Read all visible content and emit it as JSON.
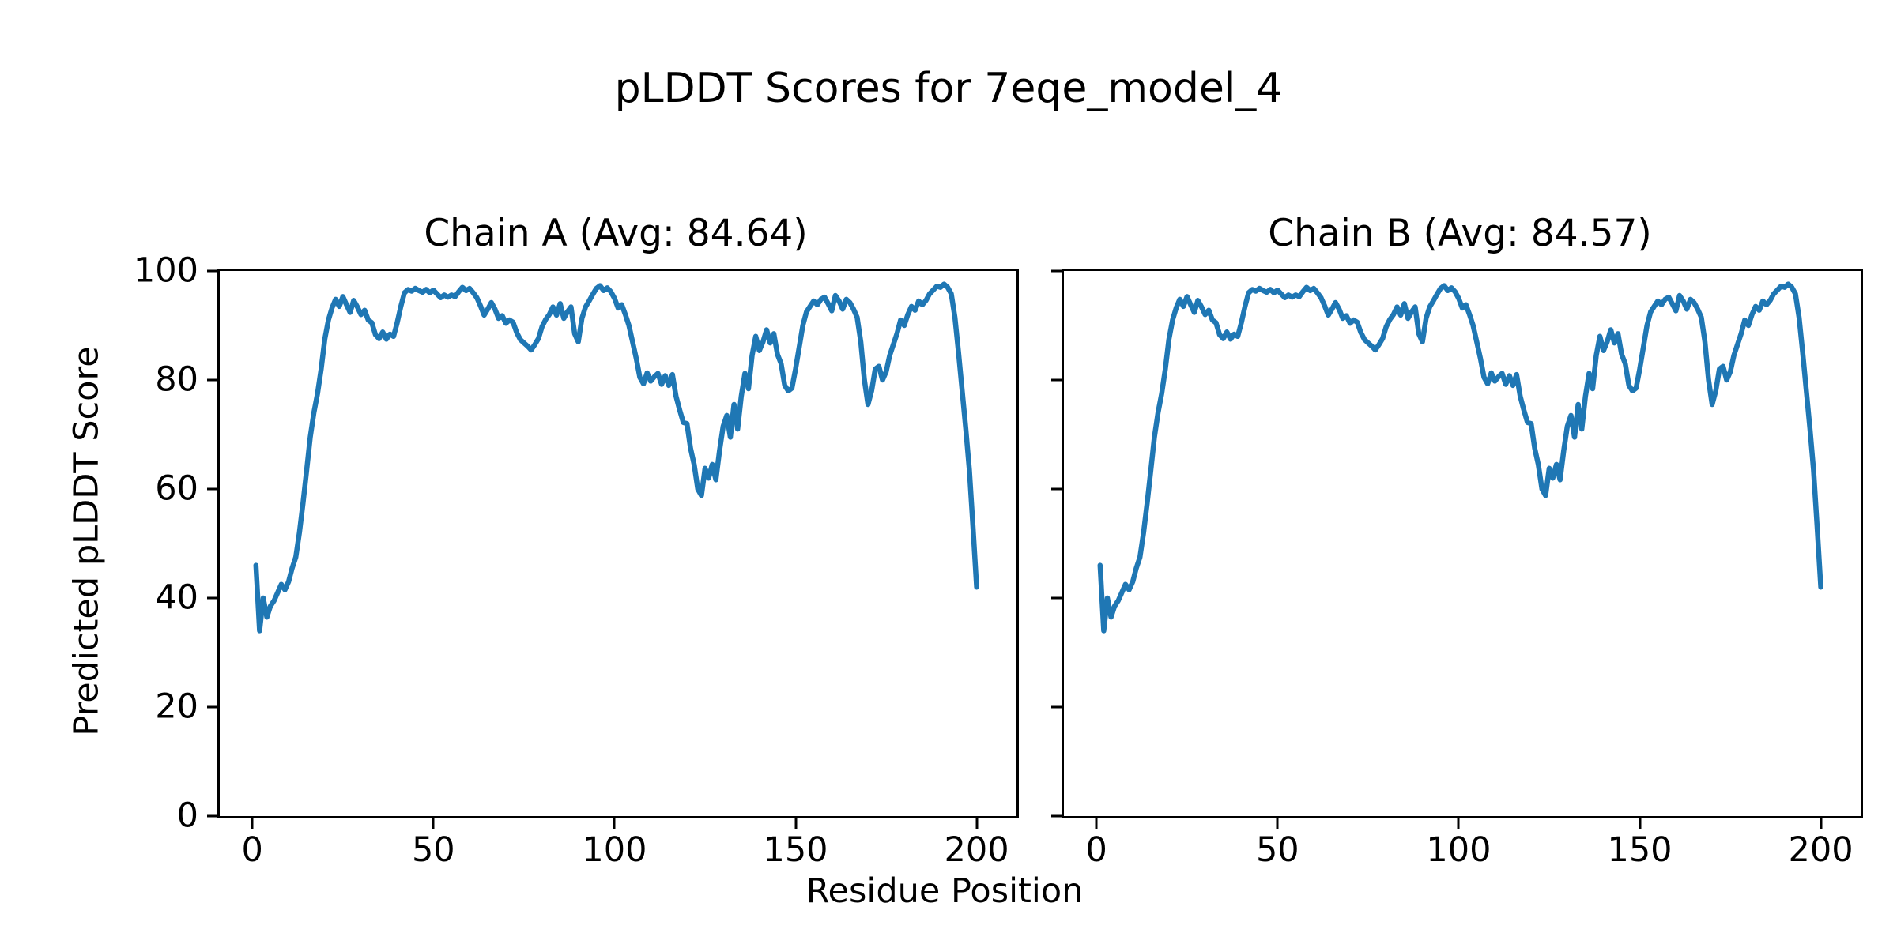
{
  "figure": {
    "title": "pLDDT Scores for 7eqe_model_4",
    "xlabel": "Residue Position",
    "ylabel": "Predicted pLDDT Score"
  },
  "chart_data": [
    {
      "type": "line",
      "title": "Chain A (Avg: 84.64)",
      "chain": "A",
      "average_plddt": 84.64,
      "line_color": "#1f77b4",
      "xlim": [
        -9,
        211
      ],
      "ylim": [
        0,
        100
      ],
      "xticks": [
        0,
        50,
        100,
        150,
        200
      ],
      "yticks": [
        0,
        20,
        40,
        60,
        80,
        100
      ],
      "y_tick_labels": true,
      "grid": false,
      "legend": "none",
      "x_start": 1,
      "values": [
        46,
        34,
        40,
        36.5,
        38.5,
        39.5,
        41,
        42.5,
        41.5,
        43,
        45.5,
        47.5,
        52,
        57.5,
        63.5,
        69.5,
        74,
        77.5,
        82,
        87.5,
        91,
        93.2,
        94.8,
        93.5,
        95.3,
        93.8,
        92.4,
        94.6,
        93.4,
        92,
        92.8,
        91,
        90.5,
        88.3,
        87.6,
        88.8,
        87.5,
        88.4,
        88,
        90.5,
        93.5,
        96,
        96.6,
        96.3,
        96.8,
        96.4,
        96.1,
        96.6,
        96,
        96.5,
        95.8,
        95.1,
        95.6,
        95.2,
        95.6,
        95.3,
        96.2,
        97,
        96.4,
        96.8,
        96,
        95.1,
        93.6,
        91.9,
        93,
        94.2,
        93,
        91.3,
        91.8,
        90.4,
        91,
        90.6,
        88.7,
        87.4,
        86.8,
        86.2,
        85.5,
        86.5,
        87.6,
        89.8,
        91.1,
        92,
        93.4,
        91.9,
        94,
        91.3,
        92.5,
        93.4,
        88.5,
        87,
        91.3,
        93.4,
        94.5,
        95.7,
        96.8,
        97.3,
        96.4,
        96.9,
        96.2,
        95,
        93.2,
        93.8,
        92,
        90,
        87,
        84,
        80.5,
        79.3,
        81.3,
        79.8,
        80.6,
        81.2,
        79.2,
        80.8,
        79,
        81,
        77,
        74.5,
        72.2,
        72,
        67.5,
        64.5,
        60,
        58.8,
        63.8,
        62,
        64.5,
        61.7,
        67,
        71.5,
        73.5,
        69.5,
        75.5,
        71,
        77,
        81.2,
        78.4,
        84.5,
        88,
        85.4,
        87,
        89.2,
        86.8,
        88.5,
        84.7,
        83,
        79,
        78,
        78.5,
        82,
        86,
        90,
        92.5,
        93.5,
        94.5,
        93.8,
        94.8,
        95.2,
        94,
        92.7,
        95.5,
        94.5,
        93,
        94.8,
        94.2,
        93,
        91.5,
        87,
        80,
        75.5,
        78,
        82,
        82.5,
        80,
        81.5,
        84.5,
        86.5,
        88.5,
        91,
        90,
        92,
        93.5,
        92.8,
        94.5,
        93.8,
        94.6,
        95.8,
        96.5,
        97.2,
        97,
        97.6,
        97,
        95.8,
        91.5,
        85,
        78,
        71,
        63.5,
        53,
        42
      ]
    },
    {
      "type": "line",
      "title": "Chain B (Avg: 84.57)",
      "chain": "B",
      "average_plddt": 84.57,
      "line_color": "#1f77b4",
      "xlim": [
        -9,
        211
      ],
      "ylim": [
        0,
        100
      ],
      "xticks": [
        0,
        50,
        100,
        150,
        200
      ],
      "yticks": [
        0,
        20,
        40,
        60,
        80,
        100
      ],
      "y_tick_labels": false,
      "grid": false,
      "legend": "none",
      "x_start": 1,
      "values": [
        46,
        34,
        40,
        36.5,
        38.5,
        39.5,
        41,
        42.5,
        41.5,
        43,
        45.5,
        47.5,
        52,
        57.5,
        63.5,
        69.5,
        74,
        77.5,
        82,
        87.5,
        91,
        93.2,
        94.8,
        93.5,
        95.3,
        93.8,
        92.4,
        94.6,
        93.4,
        92,
        92.8,
        91,
        90.5,
        88.3,
        87.6,
        88.8,
        87.5,
        88.4,
        88,
        90.5,
        93.5,
        96,
        96.6,
        96.3,
        96.8,
        96.4,
        96.1,
        96.6,
        96,
        96.5,
        95.8,
        95.1,
        95.6,
        95.2,
        95.6,
        95.3,
        96.2,
        97,
        96.4,
        96.8,
        96,
        95.1,
        93.6,
        91.9,
        93,
        94.2,
        93,
        91.3,
        91.8,
        90.4,
        91,
        90.6,
        88.7,
        87.4,
        86.8,
        86.2,
        85.5,
        86.5,
        87.6,
        89.8,
        91.1,
        92,
        93.4,
        91.9,
        94,
        91.3,
        92.5,
        93.4,
        88.5,
        87,
        91.3,
        93.4,
        94.5,
        95.7,
        96.8,
        97.3,
        96.4,
        96.9,
        96.2,
        95,
        93.2,
        93.8,
        92,
        90,
        87,
        84,
        80.5,
        79.3,
        81.3,
        79.8,
        80.6,
        81.2,
        79.2,
        80.8,
        79,
        81,
        77,
        74.5,
        72.2,
        72,
        67.5,
        64.5,
        60,
        58.8,
        63.8,
        62,
        64.5,
        61.7,
        67,
        71.5,
        73.5,
        69.5,
        75.5,
        71,
        77,
        81.2,
        78.4,
        84.5,
        88,
        85.4,
        87,
        89.2,
        86.8,
        88.5,
        84.7,
        83,
        79,
        78,
        78.5,
        82,
        86,
        90,
        92.5,
        93.5,
        94.5,
        93.8,
        94.8,
        95.2,
        94,
        92.7,
        95.5,
        94.5,
        93,
        94.8,
        94.2,
        93,
        91.5,
        87,
        80,
        75.5,
        78,
        82,
        82.5,
        80,
        81.5,
        84.5,
        86.5,
        88.5,
        91,
        90,
        92,
        93.5,
        92.8,
        94.5,
        93.8,
        94.6,
        95.8,
        96.5,
        97.2,
        97,
        97.6,
        97,
        95.8,
        91.5,
        85,
        78,
        71,
        63.5,
        53,
        42
      ]
    }
  ]
}
